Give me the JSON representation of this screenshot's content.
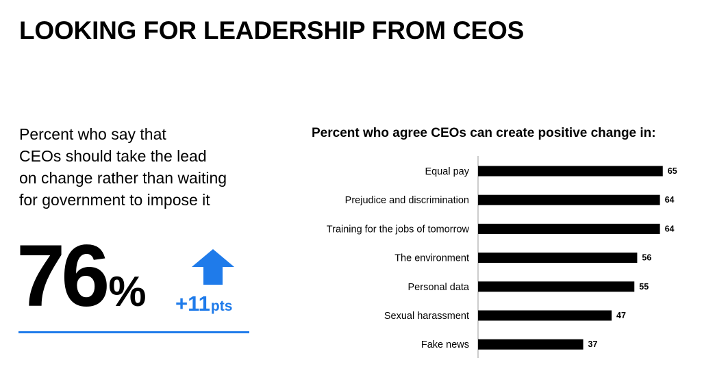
{
  "page": {
    "title": "LOOKING FOR LEADERSHIP FROM CEOS"
  },
  "left_panel": {
    "description_lines": [
      "Percent who say that",
      "CEOs should take the lead",
      "on change rather than waiting",
      "for government to impose it"
    ],
    "stat_value": "76",
    "stat_unit": "%",
    "change_value": "+11",
    "change_unit": "pts",
    "change_icon": "up-arrow-icon",
    "accent_color": "#1f7bea"
  },
  "chart_data": {
    "type": "bar",
    "orientation": "horizontal",
    "title": "Percent who agree CEOs can create positive change in:",
    "categories": [
      "Equal pay",
      "Prejudice and discrimination",
      "Training for the jobs of tomorrow",
      "The environment",
      "Personal data",
      "Sexual harassment",
      "Fake news"
    ],
    "values": [
      65,
      64,
      64,
      56,
      55,
      47,
      37
    ],
    "xlim": [
      0,
      100
    ],
    "bar_color": "#000000",
    "data_labels": true,
    "grid": false,
    "xlabel": "",
    "ylabel": ""
  }
}
